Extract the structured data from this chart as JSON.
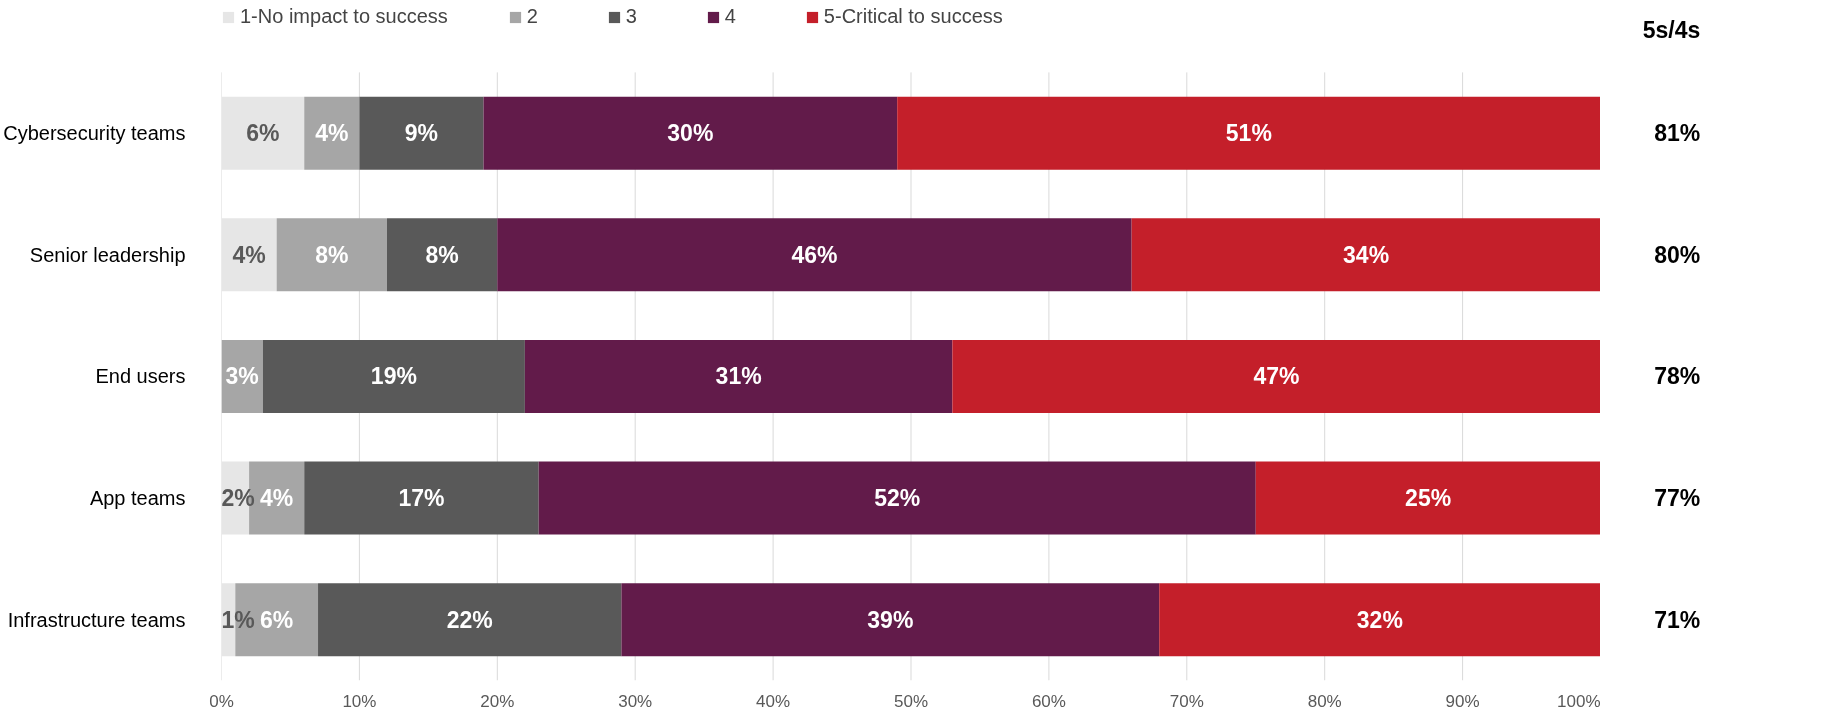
{
  "chart_data": {
    "type": "bar",
    "orientation": "horizontal",
    "stacked": true,
    "categories": [
      "Cybersecurity teams",
      "Senior leadership",
      "End users",
      "App teams",
      "Infrastructure teams"
    ],
    "series": [
      {
        "name": "1-No impact to success",
        "color": "#e6e6e6",
        "values": [
          6,
          4,
          0,
          2,
          1
        ],
        "value_labels": [
          "6%",
          "4%",
          null,
          "2%",
          "1%"
        ]
      },
      {
        "name": "2",
        "color": "#a6a6a6",
        "values": [
          4,
          8,
          3,
          4,
          6
        ],
        "value_labels": [
          "4%",
          "8%",
          "3%",
          "4%",
          "6%"
        ]
      },
      {
        "name": "3",
        "color": "#595959",
        "values": [
          9,
          8,
          19,
          17,
          22
        ],
        "value_labels": [
          "9%",
          "8%",
          "19%",
          "17%",
          "22%"
        ]
      },
      {
        "name": "4",
        "color": "#621b4a",
        "values": [
          30,
          46,
          31,
          52,
          39
        ],
        "value_labels": [
          "30%",
          "46%",
          "31%",
          "52%",
          "39%"
        ]
      },
      {
        "name": "5-Critical to success",
        "color": "#c41f2a",
        "values": [
          51,
          34,
          47,
          25,
          32
        ],
        "value_labels": [
          "51%",
          "34%",
          "47%",
          "25%",
          "32%"
        ]
      }
    ],
    "xlim": [
      0,
      100
    ],
    "xticks": [
      {
        "value": 0,
        "label": "0%"
      },
      {
        "value": 10,
        "label": "10%"
      },
      {
        "value": 20,
        "label": "20%"
      },
      {
        "value": 30,
        "label": "30%"
      },
      {
        "value": 40,
        "label": "40%"
      },
      {
        "value": 50,
        "label": "50%"
      },
      {
        "value": 60,
        "label": "60%"
      },
      {
        "value": 70,
        "label": "70%"
      },
      {
        "value": 80,
        "label": "80%"
      },
      {
        "value": 90,
        "label": "90%"
      },
      {
        "value": 100,
        "label": "100%"
      }
    ],
    "grid": "x",
    "legend": "top",
    "annotations": [
      "5s/4s",
      "81%",
      "80%",
      "78%",
      "77%",
      "71%"
    ]
  }
}
